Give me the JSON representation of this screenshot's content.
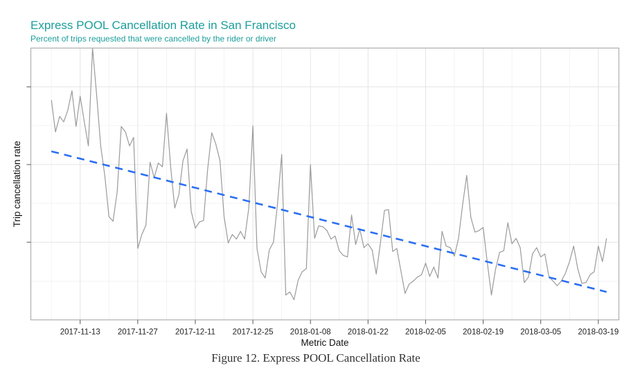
{
  "chart_data": {
    "type": "line",
    "title": "Express POOL Cancellation Rate in San Francisco",
    "subtitle": "Percent of trips requested that were cancelled by the rider or driver",
    "xlabel": "Metric Date",
    "ylabel": "Trip cancellation rate",
    "caption": "Figure 12. Express POOL Cancellation Rate",
    "y_tick_labels_shown": false,
    "y_units_note": "y-axis tick labels are not printed; values are in relative units where the three major tick marks correspond to 1, 2, 3",
    "ylim": [
      0.0,
      3.5
    ],
    "y_major_ticks": [
      1,
      2,
      3
    ],
    "y_minor_gridlines": [
      0.5,
      1.5,
      2.5,
      3.5
    ],
    "xlim": [
      "2017-11-01",
      "2018-03-24"
    ],
    "x_tick_labels": [
      "2017-11-13",
      "2017-11-27",
      "2017-12-11",
      "2017-12-25",
      "2018-01-08",
      "2018-01-22",
      "2018-02-05",
      "2018-02-19",
      "2018-03-05",
      "2018-03-19"
    ],
    "grid": true,
    "legend": "none",
    "start_date": "2017-11-06",
    "series": [
      {
        "name": "Daily cancellation rate",
        "color": "#9a9a9a",
        "style": "solid",
        "values": [
          2.83,
          2.42,
          2.62,
          2.55,
          2.7,
          2.95,
          2.49,
          2.88,
          2.55,
          2.24,
          3.5,
          2.9,
          2.24,
          1.85,
          1.33,
          1.27,
          1.65,
          2.49,
          2.42,
          2.24,
          2.35,
          0.92,
          1.1,
          1.22,
          2.03,
          1.83,
          2.02,
          1.97,
          2.66,
          1.97,
          1.44,
          1.61,
          2.05,
          2.2,
          1.4,
          1.18,
          1.26,
          1.28,
          1.94,
          2.41,
          2.26,
          2.05,
          1.33,
          0.99,
          1.1,
          1.04,
          1.14,
          1.04,
          1.44,
          2.5,
          0.92,
          0.62,
          0.54,
          0.9,
          1.0,
          1.5,
          2.13,
          0.32,
          0.36,
          0.26,
          0.51,
          0.62,
          0.66,
          2.0,
          1.05,
          1.21,
          1.2,
          1.15,
          1.04,
          1.08,
          0.89,
          0.83,
          0.81,
          1.35,
          0.97,
          1.17,
          0.93,
          0.98,
          0.9,
          0.59,
          0.99,
          1.41,
          1.42,
          0.88,
          0.92,
          0.63,
          0.34,
          0.46,
          0.5,
          0.55,
          0.58,
          0.73,
          0.56,
          0.68,
          0.54,
          1.14,
          0.95,
          0.93,
          0.82,
          1.05,
          1.48,
          1.86,
          1.32,
          1.13,
          1.15,
          1.19,
          0.74,
          0.32,
          0.65,
          0.87,
          0.89,
          1.25,
          0.98,
          1.05,
          0.93,
          0.48,
          0.55,
          0.85,
          0.93,
          0.81,
          0.85,
          0.55,
          0.5,
          0.44,
          0.5,
          0.6,
          0.75,
          0.95,
          0.66,
          0.47,
          0.48,
          0.58,
          0.62,
          0.95,
          0.75,
          1.05
        ]
      },
      {
        "name": "Linear trend",
        "color": "#2b6ff2",
        "style": "dashed",
        "trend_start": 2.17,
        "trend_end": 0.36
      }
    ]
  }
}
